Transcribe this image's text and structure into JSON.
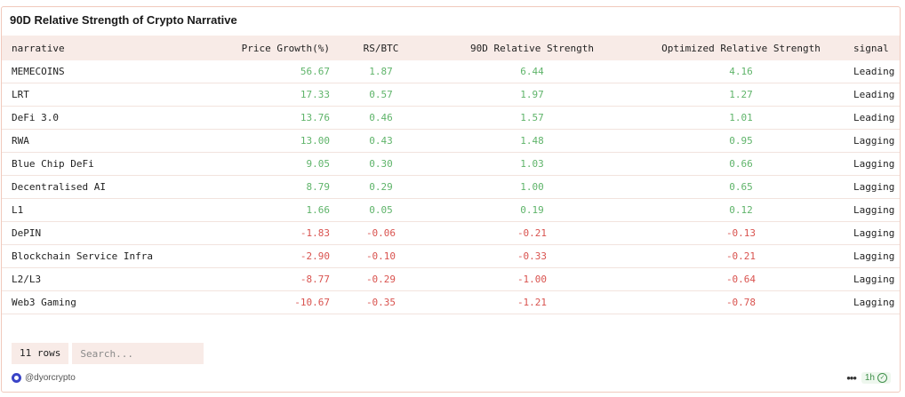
{
  "title": "90D Relative Strength of Crypto Narrative",
  "table": {
    "columns": [
      "narrative",
      "Price Growth(%)",
      "RS/BTC",
      "90D Relative Strength",
      "Optimized Relative Strength",
      "signal"
    ],
    "rows": [
      [
        "MEMECOINS",
        "56.67",
        "1.87",
        "6.44",
        "4.16",
        "Leading"
      ],
      [
        "LRT",
        "17.33",
        "0.57",
        "1.97",
        "1.27",
        "Leading"
      ],
      [
        "DeFi 3.0",
        "13.76",
        "0.46",
        "1.57",
        "1.01",
        "Leading"
      ],
      [
        "RWA",
        "13.00",
        "0.43",
        "1.48",
        "0.95",
        "Lagging"
      ],
      [
        "Blue Chip DeFi",
        "9.05",
        "0.30",
        "1.03",
        "0.66",
        "Lagging"
      ],
      [
        "Decentralised AI",
        "8.79",
        "0.29",
        "1.00",
        "0.65",
        "Lagging"
      ],
      [
        "L1",
        "1.66",
        "0.05",
        "0.19",
        "0.12",
        "Lagging"
      ],
      [
        "DePIN",
        "-1.83",
        "-0.06",
        "-0.21",
        "-0.13",
        "Lagging"
      ],
      [
        "Blockchain Service Infra",
        "-2.90",
        "-0.10",
        "-0.33",
        "-0.21",
        "Lagging"
      ],
      [
        "L2/L3",
        "-8.77",
        "-0.29",
        "-1.00",
        "-0.64",
        "Lagging"
      ],
      [
        "Web3 Gaming",
        "-10.67",
        "-0.35",
        "-1.21",
        "-0.78",
        "Lagging"
      ]
    ]
  },
  "footer": {
    "row_count": "11 rows",
    "search_placeholder": "Search...",
    "author": "@dyorcrypto",
    "more_icon": "ellipsis-icon",
    "refresh_label": "1h"
  },
  "colors": {
    "accent_bg": "#f8ebe7",
    "positive": "#5fb46a",
    "negative": "#d9534f"
  }
}
